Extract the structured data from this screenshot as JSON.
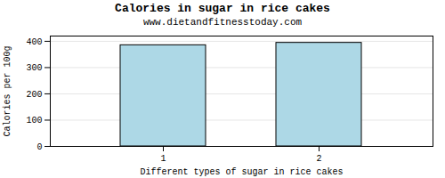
{
  "chart_data": {
    "type": "bar",
    "title": "Calories in sugar in rice cakes",
    "subtitle": "www.dietandfitnesstoday.com",
    "xlabel": "Different types of sugar in rice cakes",
    "ylabel": "Calories per 100g",
    "categories": [
      "1",
      "2"
    ],
    "values": [
      385,
      394
    ],
    "color": "#add8e6",
    "ylim": [
      0,
      420
    ],
    "yticks": [
      0,
      100,
      200,
      300,
      400
    ],
    "grid": true
  }
}
